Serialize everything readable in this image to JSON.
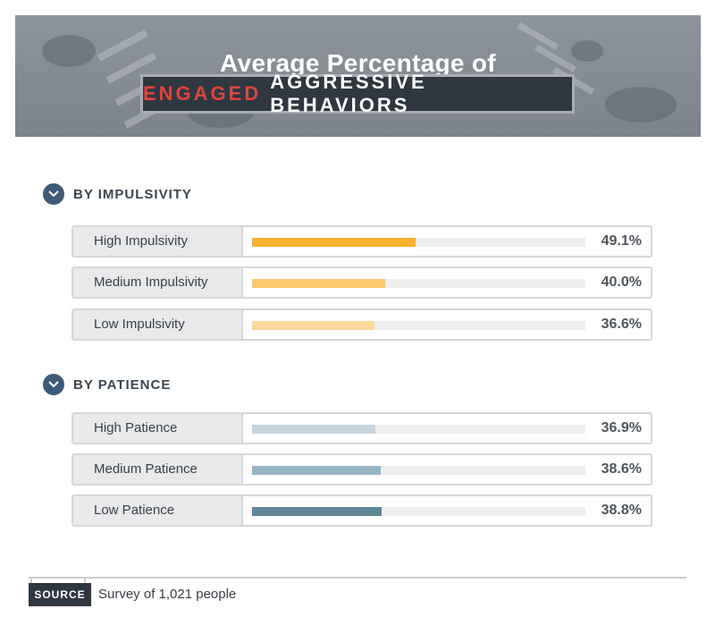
{
  "header": {
    "title": "Average Percentage of",
    "subtitle_highlight": "ENGAGED",
    "subtitle_rest": "AGGRESSIVE BEHAVIORS"
  },
  "colors": {
    "impulsivity_high": "#f8b12f",
    "impulsivity_medium": "#fbc86c",
    "impulsivity_low": "#fdd89a",
    "patience_high": "#c5d3dc",
    "patience_medium": "#94b5c6",
    "patience_low": "#5e8898",
    "subtitle_highlight": "#e0443b"
  },
  "source": {
    "badge": "SOURCE",
    "text": "Survey of 1,021 people"
  },
  "chart_data": {
    "type": "bar",
    "orientation": "horizontal",
    "unit": "%",
    "xlim": [
      0,
      100
    ],
    "groups": [
      {
        "heading": "BY IMPULSIVITY",
        "rows": [
          {
            "label": "High Impulsivity",
            "value": 49.1,
            "display": "49.1%",
            "color": "#f8b12f"
          },
          {
            "label": "Medium Impulsivity",
            "value": 40.0,
            "display": "40.0%",
            "color": "#fbc86c"
          },
          {
            "label": "Low Impulsivity",
            "value": 36.6,
            "display": "36.6%",
            "color": "#fdd89a"
          }
        ]
      },
      {
        "heading": "BY PATIENCE",
        "rows": [
          {
            "label": "High Patience",
            "value": 36.9,
            "display": "36.9%",
            "color": "#c5d3dc"
          },
          {
            "label": "Medium Patience",
            "value": 38.6,
            "display": "38.6%",
            "color": "#94b5c6"
          },
          {
            "label": "Low Patience",
            "value": 38.8,
            "display": "38.8%",
            "color": "#5e8898"
          }
        ]
      }
    ]
  }
}
